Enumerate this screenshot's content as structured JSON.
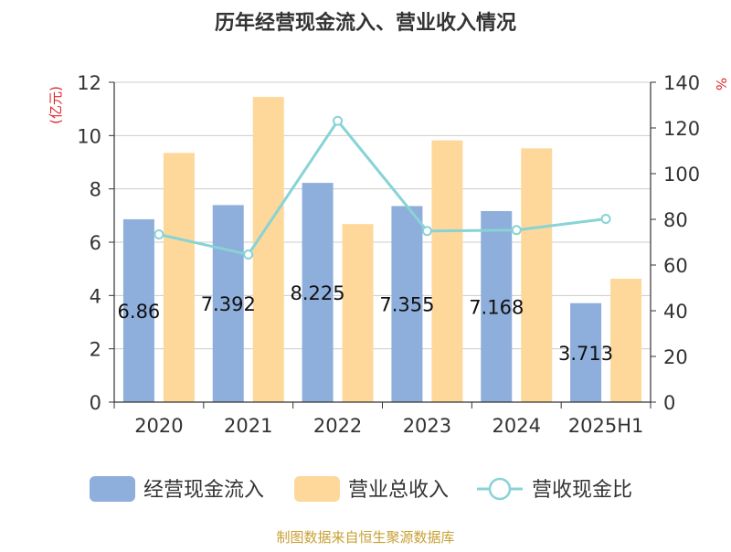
{
  "chart_data": {
    "type": "bar",
    "title": "历年经营现金流入、营业收入情况",
    "ylabel_left": "(亿元)",
    "ylabel_right": "%",
    "categories": [
      "2020",
      "2021",
      "2022",
      "2023",
      "2024",
      "2025H1"
    ],
    "ylim_left": [
      0,
      12
    ],
    "yticks_left": [
      "0",
      "2",
      "4",
      "6",
      "8",
      "10",
      "12"
    ],
    "ylim_right": [
      0,
      140
    ],
    "yticks_right": [
      "0",
      "20",
      "40",
      "60",
      "80",
      "100",
      "120",
      "140"
    ],
    "grid": true,
    "legend_position": "bottom",
    "series": [
      {
        "name": "经营现金流入",
        "type": "bar",
        "axis": "left",
        "color": "#8eaedb",
        "values": [
          6.86,
          7.392,
          8.225,
          7.355,
          7.168,
          3.713
        ],
        "labels": [
          "6.86",
          "7.392",
          "8.225",
          "7.355",
          "7.168",
          "3.713"
        ]
      },
      {
        "name": "营业总收入",
        "type": "bar",
        "axis": "left",
        "color": "#fdd89a",
        "values": [
          9.35,
          11.45,
          6.68,
          9.82,
          9.52,
          4.63
        ]
      },
      {
        "name": "营收现金比",
        "type": "line",
        "axis": "right",
        "color": "#88d3d6",
        "values": [
          73.4,
          64.6,
          123.1,
          74.9,
          75.3,
          80.2
        ]
      }
    ]
  },
  "footer": {
    "source": "制图数据来自恒生聚源数据库"
  },
  "colors": {
    "title": "#333333",
    "axis_unit_left": "#e0242b",
    "axis_unit_right": "#e0242b",
    "source": "#c8a034",
    "grid": "#cccccc"
  }
}
